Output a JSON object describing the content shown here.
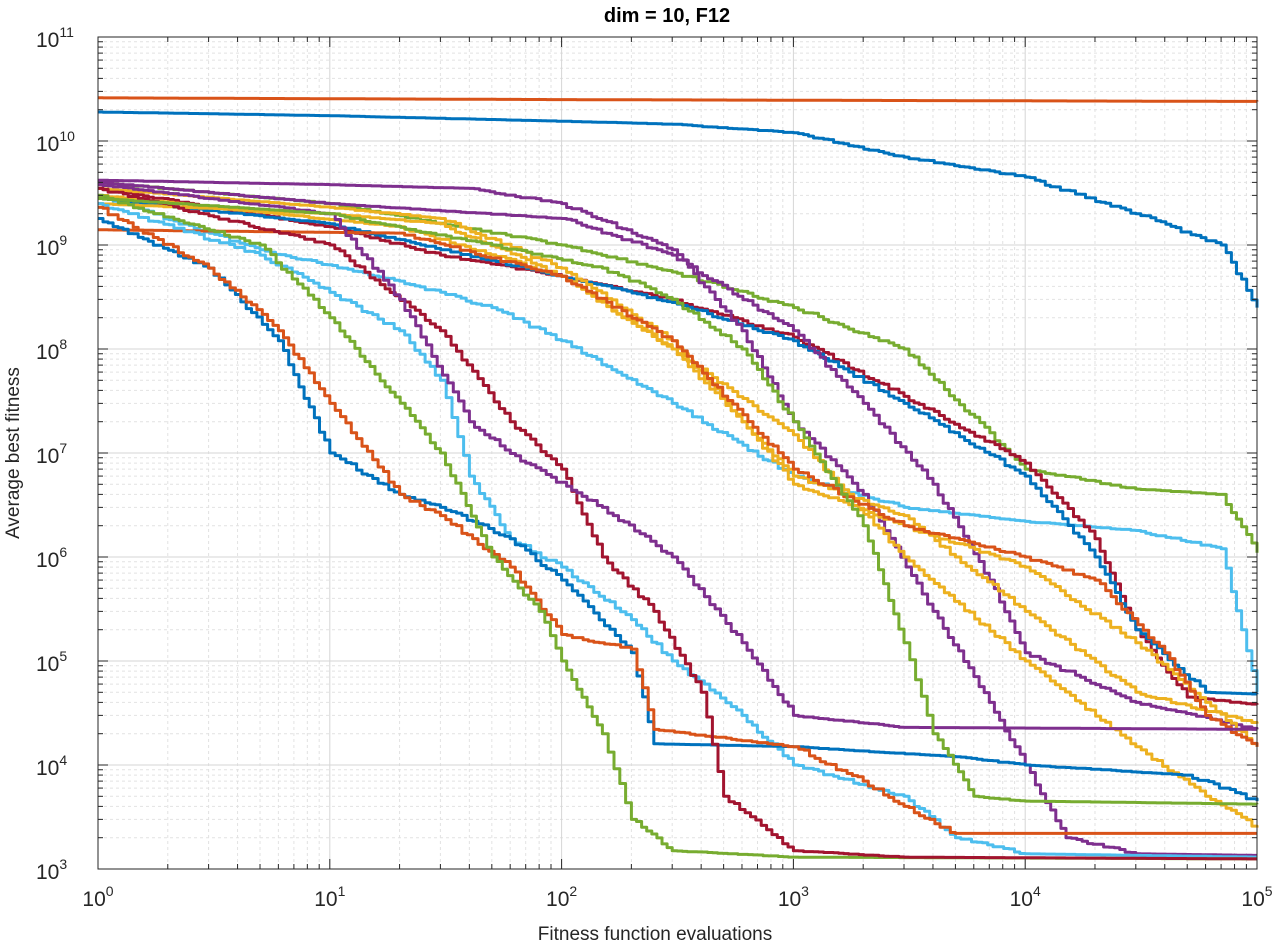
{
  "chart_data": {
    "type": "line",
    "title": "dim = 10,  F12",
    "xlabel": "Fitness function evaluations",
    "ylabel": "Average best fitness",
    "xscale": "log",
    "yscale": "log",
    "xlim": [
      1,
      100000
    ],
    "ylim": [
      1000,
      100000000000
    ],
    "grid": "major and minor",
    "x_ticks": [
      {
        "base": "10",
        "exp": "0"
      },
      {
        "base": "10",
        "exp": "1"
      },
      {
        "base": "10",
        "exp": "2"
      },
      {
        "base": "10",
        "exp": "3"
      },
      {
        "base": "10",
        "exp": "4"
      },
      {
        "base": "10",
        "exp": "5"
      }
    ],
    "y_ticks": [
      {
        "base": "10",
        "exp": "3"
      },
      {
        "base": "10",
        "exp": "4"
      },
      {
        "base": "10",
        "exp": "5"
      },
      {
        "base": "10",
        "exp": "6"
      },
      {
        "base": "10",
        "exp": "7"
      },
      {
        "base": "10",
        "exp": "8"
      },
      {
        "base": "10",
        "exp": "9"
      },
      {
        "base": "10",
        "exp": "10"
      },
      {
        "base": "10",
        "exp": "11"
      }
    ],
    "series": [
      {
        "name": "blue-top",
        "color": "#0072BD",
        "points": [
          [
            1,
            19000000000.0
          ],
          [
            10,
            17500000000.0
          ],
          [
            100,
            15500000000.0
          ],
          [
            300,
            14500000000.0
          ],
          [
            1000,
            12000000000.0
          ],
          [
            3000,
            7000000000.0
          ],
          [
            10000,
            4500000000.0
          ],
          [
            30000,
            2000000000.0
          ],
          [
            70000,
            1000000000.0
          ],
          [
            100000,
            250000000.0
          ]
        ]
      },
      {
        "name": "orange-top",
        "color": "#D95319",
        "points": [
          [
            1,
            26000000000.0
          ],
          [
            100,
            25000000000.0
          ],
          [
            100000,
            24000000000.0
          ]
        ]
      },
      {
        "name": "green-1",
        "color": "#77AC30",
        "points": [
          [
            1,
            4000000000.0
          ],
          [
            10,
            2500000000.0
          ],
          [
            100,
            1000000000.0
          ],
          [
            300,
            550000000.0
          ],
          [
            1000,
            250000000.0
          ],
          [
            3000,
            100000000.0
          ],
          [
            10000,
            7000000.0
          ],
          [
            30000,
            4500000.0
          ],
          [
            70000,
            4000000.0
          ],
          [
            100000,
            1100000.0
          ]
        ]
      },
      {
        "name": "cyan-1",
        "color": "#4DBEEE",
        "points": [
          [
            1,
            3000000000.0
          ],
          [
            5,
            900000000.0
          ],
          [
            20,
            450000000.0
          ],
          [
            50,
            250000000.0
          ],
          [
            100,
            120000000.0
          ],
          [
            300,
            30000000.0
          ],
          [
            1000,
            6000000.0
          ],
          [
            3000,
            3000000.0
          ],
          [
            10000,
            2200000.0
          ],
          [
            30000,
            1800000.0
          ],
          [
            70000,
            1200000.0
          ],
          [
            100000,
            50000.0
          ]
        ]
      },
      {
        "name": "darkred-1",
        "color": "#A2142F",
        "points": [
          [
            1,
            3500000000.0
          ],
          [
            10,
            1500000000.0
          ],
          [
            30,
            800000000.0
          ],
          [
            100,
            500000000.0
          ],
          [
            300,
            300000000.0
          ],
          [
            1000,
            130000000.0
          ],
          [
            3000,
            35000000.0
          ],
          [
            10000,
            8000000.0
          ],
          [
            20000,
            1500000.0
          ],
          [
            30000,
            200000.0
          ],
          [
            50000,
            45000.0
          ],
          [
            100000,
            38000.0
          ]
        ]
      },
      {
        "name": "blue-2",
        "color": "#0072BD",
        "points": [
          [
            1,
            2800000000.0
          ],
          [
            10,
            1600000000.0
          ],
          [
            100,
            500000000.0
          ],
          [
            300,
            280000000.0
          ],
          [
            1000,
            120000000.0
          ],
          [
            3000,
            30000000.0
          ],
          [
            10000,
            6000000.0
          ],
          [
            20000,
            1000000.0
          ],
          [
            30000,
            200000.0
          ],
          [
            60000,
            50000.0
          ],
          [
            100000,
            48000.0
          ]
        ]
      },
      {
        "name": "purple-1",
        "color": "#7E2F8E",
        "points": [
          [
            1,
            4200000000.0
          ],
          [
            10,
            3800000000.0
          ],
          [
            40,
            3500000000.0
          ],
          [
            100,
            2500000000.0
          ],
          [
            300,
            900000000.0
          ],
          [
            600,
            150000000.0
          ],
          [
            1000,
            20000000.0
          ],
          [
            2000,
            4000000.0
          ],
          [
            4000,
            300000.0
          ],
          [
            7000,
            40000.0
          ],
          [
            10000,
            10000.0
          ],
          [
            15000,
            2000.0
          ],
          [
            30000,
            1400.0
          ],
          [
            100000,
            1350.0
          ]
        ]
      },
      {
        "name": "purple-2",
        "color": "#7E2F8E",
        "points": [
          [
            1,
            4000000000.0
          ],
          [
            10,
            2500000000.0
          ],
          [
            100,
            1800000000.0
          ],
          [
            300,
            800000000.0
          ],
          [
            1000,
            150000000.0
          ],
          [
            2000,
            30000000.0
          ],
          [
            4000,
            5000000.0
          ],
          [
            7000,
            600000.0
          ],
          [
            10000,
            120000.0
          ],
          [
            30000,
            40000.0
          ],
          [
            100000,
            22000.0
          ]
        ]
      },
      {
        "name": "yellow-1",
        "color": "#EDB120",
        "points": [
          [
            1,
            3500000000.0
          ],
          [
            10,
            2300000000.0
          ],
          [
            30,
            1800000000.0
          ],
          [
            100,
            600000000.0
          ],
          [
            300,
            120000000.0
          ],
          [
            600,
            20000000.0
          ],
          [
            1000,
            6000000.0
          ],
          [
            3000,
            2500000.0
          ],
          [
            5000,
            1000000.0
          ],
          [
            10000,
            300000.0
          ],
          [
            30000,
            50000.0
          ],
          [
            100000,
            25000.0
          ]
        ]
      },
      {
        "name": "yellow-2",
        "color": "#EDB120",
        "points": [
          [
            1,
            2500000000.0
          ],
          [
            10,
            2000000000.0
          ],
          [
            30,
            1600000000.0
          ],
          [
            100,
            500000000.0
          ],
          [
            300,
            100000000.0
          ],
          [
            600,
            20000000.0
          ],
          [
            1000,
            5000000.0
          ],
          [
            3000,
            2000000.0
          ],
          [
            10000,
            800000.0
          ],
          [
            30000,
            150000.0
          ],
          [
            60000,
            40000.0
          ],
          [
            100000,
            15000.0
          ]
        ]
      },
      {
        "name": "yellow-3",
        "color": "#EDB120",
        "points": [
          [
            1,
            3000000000.0
          ],
          [
            20,
            1500000000.0
          ],
          [
            100,
            500000000.0
          ],
          [
            300,
            100000000.0
          ],
          [
            1000,
            15000000.0
          ],
          [
            3000,
            1000000.0
          ],
          [
            10000,
            100000.0
          ],
          [
            30000,
            15000.0
          ],
          [
            60000,
            5000.0
          ],
          [
            100000,
            2500.0
          ]
        ]
      },
      {
        "name": "orange-1",
        "color": "#D95319",
        "points": [
          [
            1,
            1400000000.0
          ],
          [
            20,
            1300000000.0
          ],
          [
            100,
            500000000.0
          ],
          [
            300,
            120000000.0
          ],
          [
            1000,
            7000000.0
          ],
          [
            3000,
            2000000.0
          ],
          [
            10000,
            1000000.0
          ],
          [
            20000,
            600000.0
          ],
          [
            40000,
            120000.0
          ],
          [
            60000,
            30000.0
          ],
          [
            100000,
            15000.0
          ]
        ]
      },
      {
        "name": "cyan-2",
        "color": "#4DBEEE",
        "points": [
          [
            1,
            2500000000.0
          ],
          [
            5,
            800000000.0
          ],
          [
            10,
            350000000.0
          ],
          [
            20,
            150000000.0
          ],
          [
            30,
            50000000.0
          ],
          [
            40,
            6000000.0
          ],
          [
            60,
            1500000.0
          ],
          [
            100,
            800000.0
          ],
          [
            200,
            250000.0
          ],
          [
            300,
            100000.0
          ],
          [
            600,
            30000.0
          ],
          [
            1000,
            10000.0
          ],
          [
            3000,
            5000.0
          ],
          [
            5000,
            2000.0
          ],
          [
            10000,
            1400.0
          ],
          [
            100000,
            1300.0
          ]
        ]
      },
      {
        "name": "blue-3",
        "color": "#0072BD",
        "points": [
          [
            1,
            1800000000.0
          ],
          [
            3,
            600000000.0
          ],
          [
            6,
            120000000.0
          ],
          [
            10,
            10000000.0
          ],
          [
            20,
            4000000.0
          ],
          [
            30,
            3000000.0
          ],
          [
            60,
            1500000.0
          ],
          [
            100,
            600000.0
          ],
          [
            200,
            120000.0
          ],
          [
            250,
            16000.0
          ],
          [
            1000,
            15000.0
          ],
          [
            5000,
            12000.0
          ],
          [
            10000,
            10000.0
          ],
          [
            50000,
            8000.0
          ],
          [
            100000,
            4500.0
          ]
        ]
      },
      {
        "name": "orange-2",
        "color": "#D95319",
        "points": [
          [
            1,
            2300000000.0
          ],
          [
            3,
            600000000.0
          ],
          [
            6,
            150000000.0
          ],
          [
            10,
            30000000.0
          ],
          [
            20,
            4000000.0
          ],
          [
            30,
            2500000.0
          ],
          [
            60,
            800000.0
          ],
          [
            100,
            180000.0
          ],
          [
            200,
            130000.0
          ],
          [
            250,
            22000.0
          ],
          [
            1000,
            15000.0
          ],
          [
            2000,
            7000.0
          ],
          [
            3000,
            4000.0
          ],
          [
            5000,
            2200.0
          ],
          [
            100000,
            2200.0
          ]
        ]
      },
      {
        "name": "green-2",
        "color": "#77AC30",
        "points": [
          [
            1,
            3000000000.0
          ],
          [
            5,
            1000000000.0
          ],
          [
            10,
            200000000.0
          ],
          [
            30,
            10000000.0
          ],
          [
            50,
            1000000.0
          ],
          [
            80,
            300000.0
          ],
          [
            100,
            100000.0
          ],
          [
            150,
            20000.0
          ],
          [
            200,
            3000.0
          ],
          [
            300,
            1500.0
          ],
          [
            1000,
            1300.0
          ],
          [
            100000,
            1250.0
          ]
        ]
      },
      {
        "name": "darkred-2",
        "color": "#A2142F",
        "points": [
          [
            1,
            3500000000.0
          ],
          [
            10,
            1000000000.0
          ],
          [
            30,
            150000000.0
          ],
          [
            60,
            20000000.0
          ],
          [
            100,
            7000000.0
          ],
          [
            150,
            1000000.0
          ],
          [
            250,
            300000.0
          ],
          [
            400,
            50000.0
          ],
          [
            500,
            5000.0
          ],
          [
            1000,
            1500.0
          ],
          [
            3000,
            1300.0
          ],
          [
            100000,
            1250.0
          ]
        ]
      },
      {
        "name": "purple-3",
        "color": "#7E2F8E",
        "points": [
          [
            1,
            3800000000.0
          ],
          [
            10,
            2000000000.0
          ],
          [
            20,
            300000000.0
          ],
          [
            40,
            20000000.0
          ],
          [
            70,
            8000000.0
          ],
          [
            150,
            3000000.0
          ],
          [
            300,
            1000000.0
          ],
          [
            600,
            150000.0
          ],
          [
            1000,
            30000.0
          ],
          [
            3000,
            23000.0
          ],
          [
            100000,
            22000.0
          ]
        ]
      },
      {
        "name": "green-3",
        "color": "#77AC30",
        "points": [
          [
            1,
            2800000000.0
          ],
          [
            10,
            2000000000.0
          ],
          [
            50,
            1000000000.0
          ],
          [
            150,
            600000000.0
          ],
          [
            300,
            300000000.0
          ],
          [
            600,
            100000000.0
          ],
          [
            1000,
            20000000.0
          ],
          [
            2000,
            2000000.0
          ],
          [
            3000,
            150000.0
          ],
          [
            4000,
            20000.0
          ],
          [
            6000,
            5000.0
          ],
          [
            10000,
            4500.0
          ],
          [
            100000,
            4200.0
          ]
        ]
      }
    ]
  }
}
